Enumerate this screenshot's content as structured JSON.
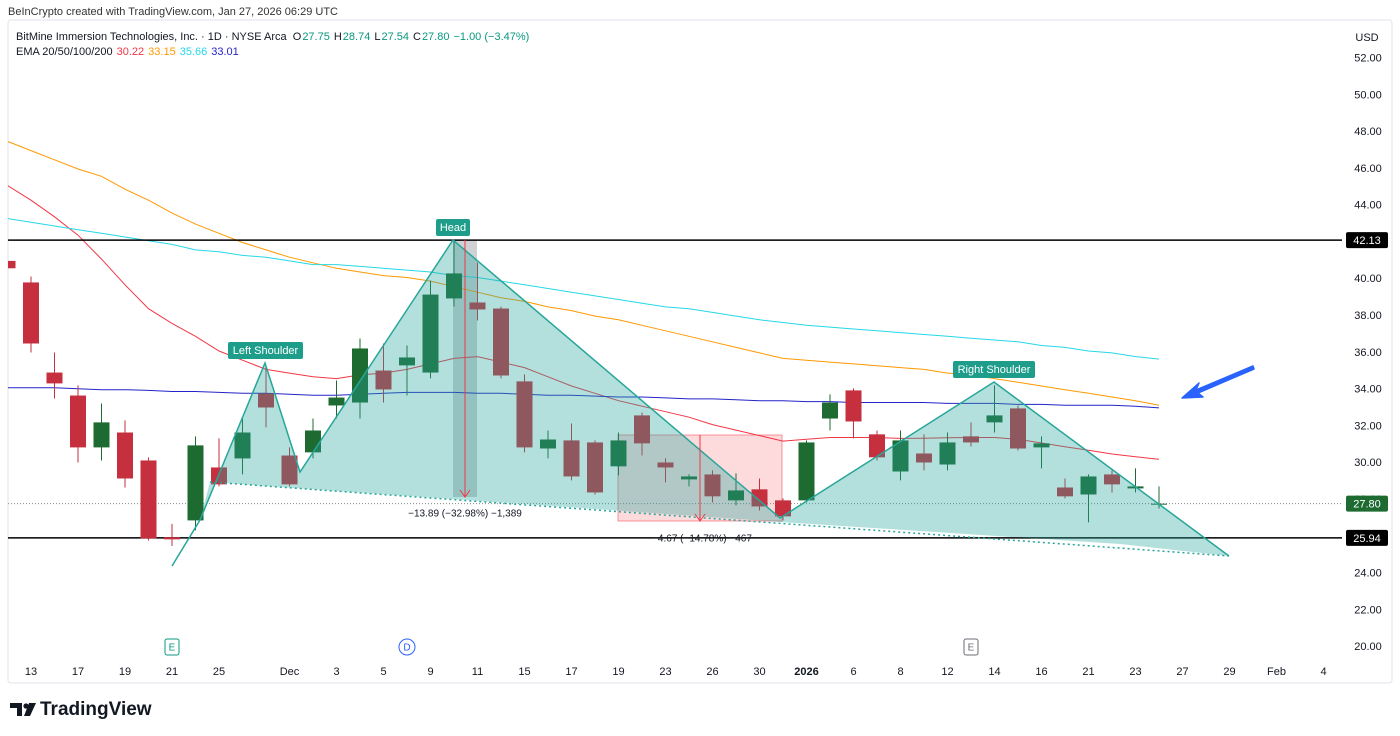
{
  "chart_data": {
    "type": "candlestick",
    "source": "BeInCrypto created with TradingView.com, Jan 27, 2026 06:29 UTC",
    "symbol": "BitMine Immersion Technologies, Inc. · 1D · NYSE Arca",
    "ohlc": [
      {
        "label": "O",
        "value": "27.75"
      },
      {
        "label": "H",
        "value": "28.74"
      },
      {
        "label": "L",
        "value": "27.54"
      },
      {
        "label": "C",
        "value": "27.80"
      }
    ],
    "change": "−1.00 (−3.47%)",
    "currency": "USD",
    "brand": "TradingView",
    "up_color": "#1e6b32",
    "down_color": "#c62f3e",
    "categories": [
      null,
      "13",
      null,
      "17",
      null,
      "19",
      null,
      "21",
      null,
      "25",
      null,
      null,
      "Dec",
      null,
      "3",
      null,
      "5",
      null,
      "9",
      null,
      "11",
      null,
      "15",
      null,
      "17",
      null,
      "19",
      null,
      "23",
      null,
      "26",
      null,
      "30",
      null,
      "2026",
      null,
      "6",
      null,
      "8",
      null,
      "12",
      null,
      "14",
      null,
      "16",
      null,
      "21",
      null,
      "23",
      null,
      "27",
      null,
      "29",
      null,
      "Feb",
      null,
      "4"
    ],
    "open": [
      41.0,
      39.83,
      34.93,
      33.68,
      30.86,
      31.67,
      30.15,
      25.97,
      26.89,
      29.77,
      30.26,
      33.79,
      30.42,
      30.59,
      33.14,
      33.3,
      35.04,
      35.32,
      34.93,
      38.96,
      38.74,
      38.41,
      34.45,
      30.8,
      31.24,
      31.13,
      29.83,
      32.6,
      30.04,
      29.12,
      29.39,
      27.98,
      28.58,
      27.98,
      27.98,
      32.43,
      33.96,
      31.57,
      29.55,
      30.53,
      29.93,
      31.46,
      32.22,
      32.98,
      30.86,
      28.68,
      28.3,
      29.39,
      28.63,
      27.75,
      null,
      null,
      null,
      null,
      null,
      null,
      null
    ],
    "high": [
      41.1,
      40.15,
      36.02,
      34.23,
      33.25,
      32.33,
      30.32,
      26.7,
      31.46,
      31.35,
      32.43,
      35.32,
      30.86,
      32.43,
      34.5,
      36.78,
      36.51,
      36.4,
      39.93,
      42.1,
      40.91,
      38.52,
      34.83,
      31.78,
      32.16,
      31.24,
      31.67,
      32.76,
      30.26,
      29.39,
      29.61,
      29.45,
      29.17,
      28.09,
      31.24,
      33.74,
      34.07,
      31.78,
      31.78,
      31.57,
      31.67,
      32.22,
      34.23,
      33.14,
      31.46,
      29.17,
      29.39,
      29.61,
      29.72,
      28.74,
      null,
      null,
      null,
      null,
      null,
      null,
      null
    ],
    "low": [
      40.5,
      36.02,
      33.52,
      30.04,
      30.15,
      28.68,
      25.8,
      25.5,
      26.35,
      28.74,
      29.39,
      31.95,
      28.74,
      30.26,
      32.43,
      32.43,
      33.3,
      33.68,
      34.61,
      38.52,
      37.76,
      34.61,
      30.59,
      30.26,
      29.07,
      28.3,
      29.34,
      30.42,
      28.96,
      28.74,
      27.87,
      27.71,
      27.43,
      26.89,
      27.87,
      31.78,
      31.35,
      30.15,
      29.07,
      29.61,
      29.61,
      30.91,
      31.67,
      30.69,
      29.72,
      28.09,
      26.78,
      28.41,
      28.41,
      27.54,
      null,
      null,
      null,
      null,
      null,
      null,
      null
    ],
    "close": [
      40.6,
      36.51,
      34.34,
      30.86,
      32.22,
      29.17,
      25.91,
      25.86,
      30.97,
      28.85,
      31.67,
      33.03,
      28.85,
      31.78,
      33.57,
      36.24,
      34.01,
      35.75,
      39.17,
      40.32,
      38.36,
      34.77,
      30.86,
      31.29,
      29.28,
      28.41,
      31.24,
      31.08,
      29.77,
      29.28,
      28.2,
      28.52,
      27.65,
      27.11,
      31.13,
      33.3,
      32.27,
      30.32,
      31.24,
      30.04,
      31.13,
      31.13,
      32.6,
      30.8,
      31.08,
      28.2,
      29.28,
      28.85,
      28.74,
      27.8,
      null,
      null,
      null,
      null,
      null,
      null,
      null
    ],
    "ylim": [
      19.3,
      54.1
    ],
    "yticks": [
      {
        "value": 20,
        "label": "20.00"
      },
      {
        "value": 22,
        "label": "22.00"
      },
      {
        "value": 24,
        "label": "24.00"
      },
      {
        "value": 26,
        "label": "26.00"
      },
      {
        "value": 28,
        "label": "28.00"
      },
      {
        "value": 30,
        "label": "30.00"
      },
      {
        "value": 32,
        "label": "32.00"
      },
      {
        "value": 34,
        "label": "34.00"
      },
      {
        "value": 36,
        "label": "36.00"
      },
      {
        "value": 38,
        "label": "38.00"
      },
      {
        "value": 40,
        "label": "40.00"
      },
      {
        "value": 42,
        "label": "42.00"
      },
      {
        "value": 44,
        "label": "44.00"
      },
      {
        "value": 46,
        "label": "46.00"
      },
      {
        "value": 48,
        "label": "48.00"
      },
      {
        "value": 50,
        "label": "50.00"
      },
      {
        "value": 52,
        "label": "52.00"
      }
    ],
    "grid": false,
    "indicator": {
      "title": "EMA 20/50/100/200",
      "series": [
        {
          "color": "#f23645",
          "last_label": "30.22",
          "values": [
            45.1,
            44.3,
            43.4,
            42.4,
            41.1,
            39.7,
            38.4,
            37.6,
            36.9,
            36.1,
            35.6,
            35.1,
            34.9,
            34.7,
            34.6,
            34.8,
            34.9,
            35.1,
            35.4,
            35.7,
            35.8,
            35.5,
            35.2,
            34.7,
            34.2,
            33.8,
            33.4,
            33.1,
            32.8,
            32.5,
            32.1,
            31.8,
            31.5,
            31.2,
            31.3,
            31.4,
            31.4,
            31.4,
            31.35,
            31.36,
            31.38,
            31.4,
            31.4,
            31.3,
            31.1,
            30.9,
            30.7,
            30.5,
            30.35,
            30.22,
            null,
            null,
            null,
            null,
            null,
            null,
            null
          ]
        },
        {
          "color": "#ff9800",
          "last_label": "33.15",
          "values": [
            47.5,
            47.0,
            46.5,
            46.0,
            45.6,
            44.9,
            44.3,
            43.6,
            43.0,
            42.5,
            42.0,
            41.6,
            41.2,
            40.9,
            40.6,
            40.4,
            40.2,
            40.1,
            39.9,
            39.6,
            39.3,
            39.0,
            38.8,
            38.5,
            38.3,
            38.0,
            37.8,
            37.5,
            37.2,
            36.9,
            36.6,
            36.3,
            36.0,
            35.7,
            35.6,
            35.5,
            35.4,
            35.3,
            35.2,
            35.1,
            34.9,
            34.8,
            34.6,
            34.4,
            34.2,
            34.0,
            33.8,
            33.6,
            33.4,
            33.15,
            null,
            null,
            null,
            null,
            null,
            null,
            null
          ]
        },
        {
          "color": "#26d7e8",
          "last_label": "35.66",
          "values": [
            43.3,
            43.1,
            42.9,
            42.7,
            42.5,
            42.3,
            42.1,
            41.9,
            41.6,
            41.5,
            41.3,
            41.2,
            41.0,
            40.8,
            40.8,
            40.7,
            40.6,
            40.5,
            40.4,
            40.2,
            40.1,
            39.9,
            39.7,
            39.5,
            39.3,
            39.1,
            38.9,
            38.7,
            38.5,
            38.4,
            38.2,
            38.0,
            37.8,
            37.65,
            37.5,
            37.4,
            37.3,
            37.2,
            37.1,
            37.0,
            36.9,
            36.8,
            36.7,
            36.6,
            36.4,
            36.3,
            36.1,
            36.0,
            35.8,
            35.66,
            null,
            null,
            null,
            null,
            null,
            null,
            null
          ]
        },
        {
          "color": "#2424c8",
          "last_label": "33.01",
          "values": [
            34.1,
            34.1,
            34.1,
            34.05,
            34.0,
            34.0,
            33.96,
            33.9,
            33.9,
            33.85,
            33.8,
            33.8,
            33.75,
            33.7,
            33.7,
            33.75,
            33.8,
            33.85,
            33.85,
            33.85,
            33.8,
            33.8,
            33.75,
            33.7,
            33.7,
            33.65,
            33.6,
            33.6,
            33.55,
            33.5,
            33.5,
            33.45,
            33.4,
            33.4,
            33.35,
            33.35,
            33.3,
            33.3,
            33.3,
            33.3,
            33.25,
            33.25,
            33.25,
            33.2,
            33.2,
            33.15,
            33.15,
            33.15,
            33.1,
            33.01,
            null,
            null,
            null,
            null,
            null,
            null,
            null
          ]
        }
      ]
    },
    "hlines": [
      42.13,
      25.94
    ],
    "last_price": {
      "value": 27.8,
      "label": "27.80"
    },
    "events": [
      {
        "index": 7,
        "label": "E",
        "color": "#089981"
      },
      {
        "index": 17,
        "label": "D",
        "color": "#2962ff"
      },
      {
        "index": 41,
        "label": "E",
        "color": "#6a6d78"
      }
    ],
    "annotations": [
      "Left Shoulder",
      "Head",
      "Right Shoulder",
      "−13.89 (−32.98%) −1,389",
      "−4.67 (−14.78%) −467"
    ]
  }
}
